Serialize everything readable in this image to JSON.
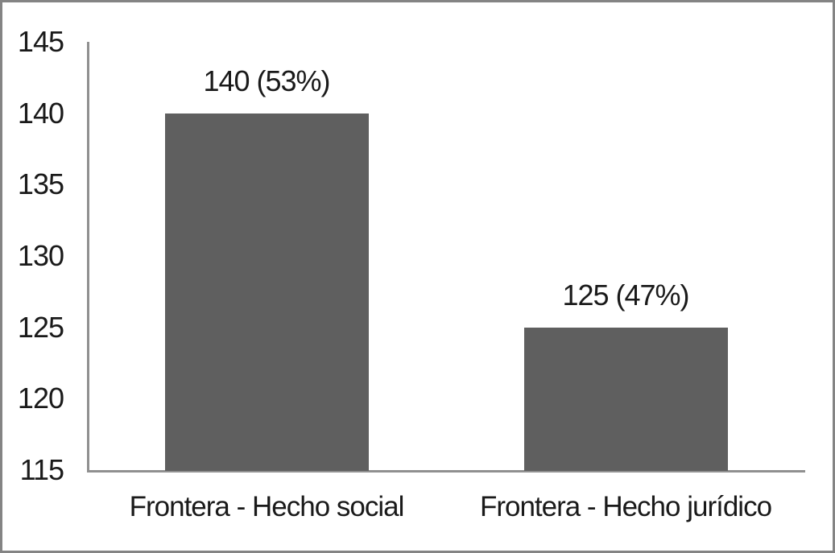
{
  "chart_data": {
    "type": "bar",
    "categories": [
      "Frontera - Hecho social",
      "Frontera - Hecho jurídico"
    ],
    "values": [
      140,
      125
    ],
    "bar_labels": [
      "140 (53%)",
      "125 (47%)"
    ],
    "title": "",
    "xlabel": "",
    "ylabel": "",
    "ylim": [
      115,
      145
    ],
    "yticks": [
      115,
      120,
      125,
      130,
      135,
      140,
      145
    ],
    "grid": false,
    "legend": false,
    "colors": {
      "bar": "#5f5f5f",
      "axis": "#909090",
      "text": "#1a1a1a",
      "frame_border": "#848484",
      "background": "#ffffff"
    }
  }
}
